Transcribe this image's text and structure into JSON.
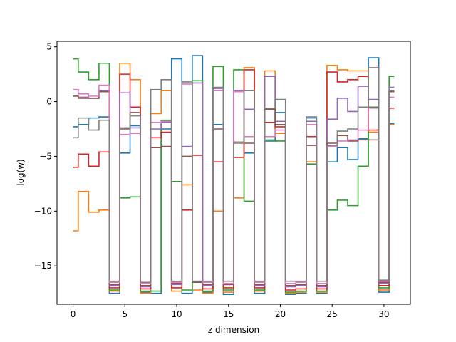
{
  "chart_data": {
    "type": "line",
    "drawstyle": "steps-mid",
    "title": "",
    "xlabel": "z dimension",
    "ylabel": "log(w)",
    "xlim": [
      -1.55,
      32.55
    ],
    "ylim": [
      -18.5,
      5.5
    ],
    "xticks": [
      0,
      5,
      10,
      15,
      20,
      25,
      30
    ],
    "yticks": [
      5,
      0,
      -5,
      -10,
      -15
    ],
    "ytick_labels": [
      "5",
      "0",
      "−5",
      "−10",
      "−15"
    ],
    "grid": false,
    "legend": "none",
    "x": [
      0,
      1,
      2,
      3,
      4,
      5,
      6,
      7,
      8,
      9,
      10,
      11,
      12,
      13,
      14,
      15,
      16,
      17,
      18,
      19,
      20,
      21,
      22,
      23,
      24,
      25,
      26,
      27,
      28,
      29,
      30,
      31
    ],
    "series": [
      {
        "color": "#1f77b4",
        "values": [
          -2.3,
          -2.1,
          -1.5,
          -1.4,
          -17.5,
          -4.7,
          -2.2,
          -17.4,
          -17.5,
          -2.5,
          3.9,
          -17.5,
          4.2,
          -17.4,
          -2.1,
          -17.6,
          0.9,
          -4.7,
          -17.5,
          -3.6,
          -1.0,
          -17.6,
          -17.5,
          -1.5,
          -17.5,
          -5.5,
          -4.2,
          -5.3,
          -3.4,
          4.0,
          -17.4,
          -2.0
        ]
      },
      {
        "color": "#ff7f0e",
        "values": [
          -11.8,
          -8.2,
          -10.1,
          -9.9,
          -17.3,
          3.5,
          2.0,
          -17.5,
          -1.1,
          1.0,
          -17.3,
          -7.6,
          -17.2,
          -17.5,
          -10.0,
          -17.4,
          -8.8,
          3.1,
          -17.3,
          2.8,
          -2.9,
          -17.5,
          -17.4,
          -5.5,
          -17.4,
          3.3,
          2.9,
          2.8,
          2.8,
          -2.8,
          -17.2,
          -2.1
        ]
      },
      {
        "color": "#2ca02c",
        "values": [
          3.9,
          2.7,
          2.0,
          3.5,
          -17.2,
          -8.8,
          -8.7,
          -17.3,
          -17.3,
          -1.7,
          -7.3,
          -17.2,
          1.9,
          -17.3,
          3.2,
          -17.2,
          2.9,
          -9.1,
          -17.2,
          -3.5,
          -3.6,
          -17.4,
          -17.3,
          -5.7,
          -17.3,
          -9.9,
          -9.0,
          -9.5,
          -5.9,
          -0.5,
          -17.0,
          2.3
        ]
      },
      {
        "color": "#d62728",
        "values": [
          -6.0,
          -4.8,
          -5.9,
          -4.6,
          -17.0,
          2.5,
          -0.5,
          -17.1,
          -3.3,
          -2.8,
          -17.0,
          -9.9,
          -4.9,
          -17.1,
          -5.5,
          -17.0,
          -5.1,
          2.9,
          -17.0,
          -1.9,
          -2.3,
          -17.2,
          -17.1,
          -3.2,
          -17.1,
          2.7,
          1.8,
          2.0,
          2.3,
          -2.6,
          -16.8,
          -0.6
        ]
      },
      {
        "color": "#9467bd",
        "values": [
          0.5,
          0.4,
          0.3,
          1.0,
          -16.8,
          0.8,
          -2.4,
          -16.9,
          -2.5,
          -1.9,
          -16.7,
          -4.1,
          1.7,
          -16.8,
          1.2,
          -16.7,
          1.0,
          -0.7,
          -16.8,
          2.3,
          -1.8,
          -16.9,
          -16.8,
          -1.8,
          -16.9,
          -1.6,
          0.3,
          -0.9,
          1.4,
          0.2,
          -16.6,
          1.3
        ]
      },
      {
        "color": "#8c564b",
        "values": [
          0.5,
          0.3,
          0.3,
          0.9,
          -16.7,
          -2.5,
          -1.0,
          -16.8,
          -4.2,
          -4.1,
          -16.6,
          -5.0,
          -16.5,
          -16.7,
          -2.5,
          -16.7,
          -3.7,
          -3.8,
          -16.7,
          -0.7,
          -2.1,
          -16.8,
          -16.7,
          -4.0,
          -16.8,
          -3.8,
          -3.1,
          -3.6,
          -3.5,
          -3.5,
          -16.5,
          0.9
        ]
      },
      {
        "color": "#e377c2",
        "values": [
          1.1,
          0.7,
          0.5,
          1.5,
          -16.5,
          -3.0,
          -2.9,
          -16.6,
          -1.9,
          -1.8,
          -16.5,
          1.6,
          -16.4,
          -16.5,
          1.0,
          -16.6,
          0.9,
          -3.2,
          -16.5,
          -3.2,
          -2.6,
          -16.6,
          -16.5,
          -2.1,
          -16.6,
          -4.1,
          -3.6,
          -3.5,
          -2.6,
          -0.6,
          -16.4,
          0.4
        ]
      },
      {
        "color": "#7f7f7f",
        "values": [
          -3.3,
          -1.5,
          -2.6,
          -1.7,
          -16.4,
          -2.4,
          -1.3,
          -16.5,
          1.1,
          2.0,
          -16.4,
          1.8,
          -16.4,
          -16.4,
          1.3,
          -16.4,
          -3.8,
          1.0,
          -16.4,
          -0.6,
          0.2,
          -16.4,
          -16.4,
          -1.4,
          -16.4,
          -4.0,
          -2.7,
          -2.5,
          -0.5,
          3.1,
          -16.3,
          1.0
        ]
      }
    ]
  }
}
